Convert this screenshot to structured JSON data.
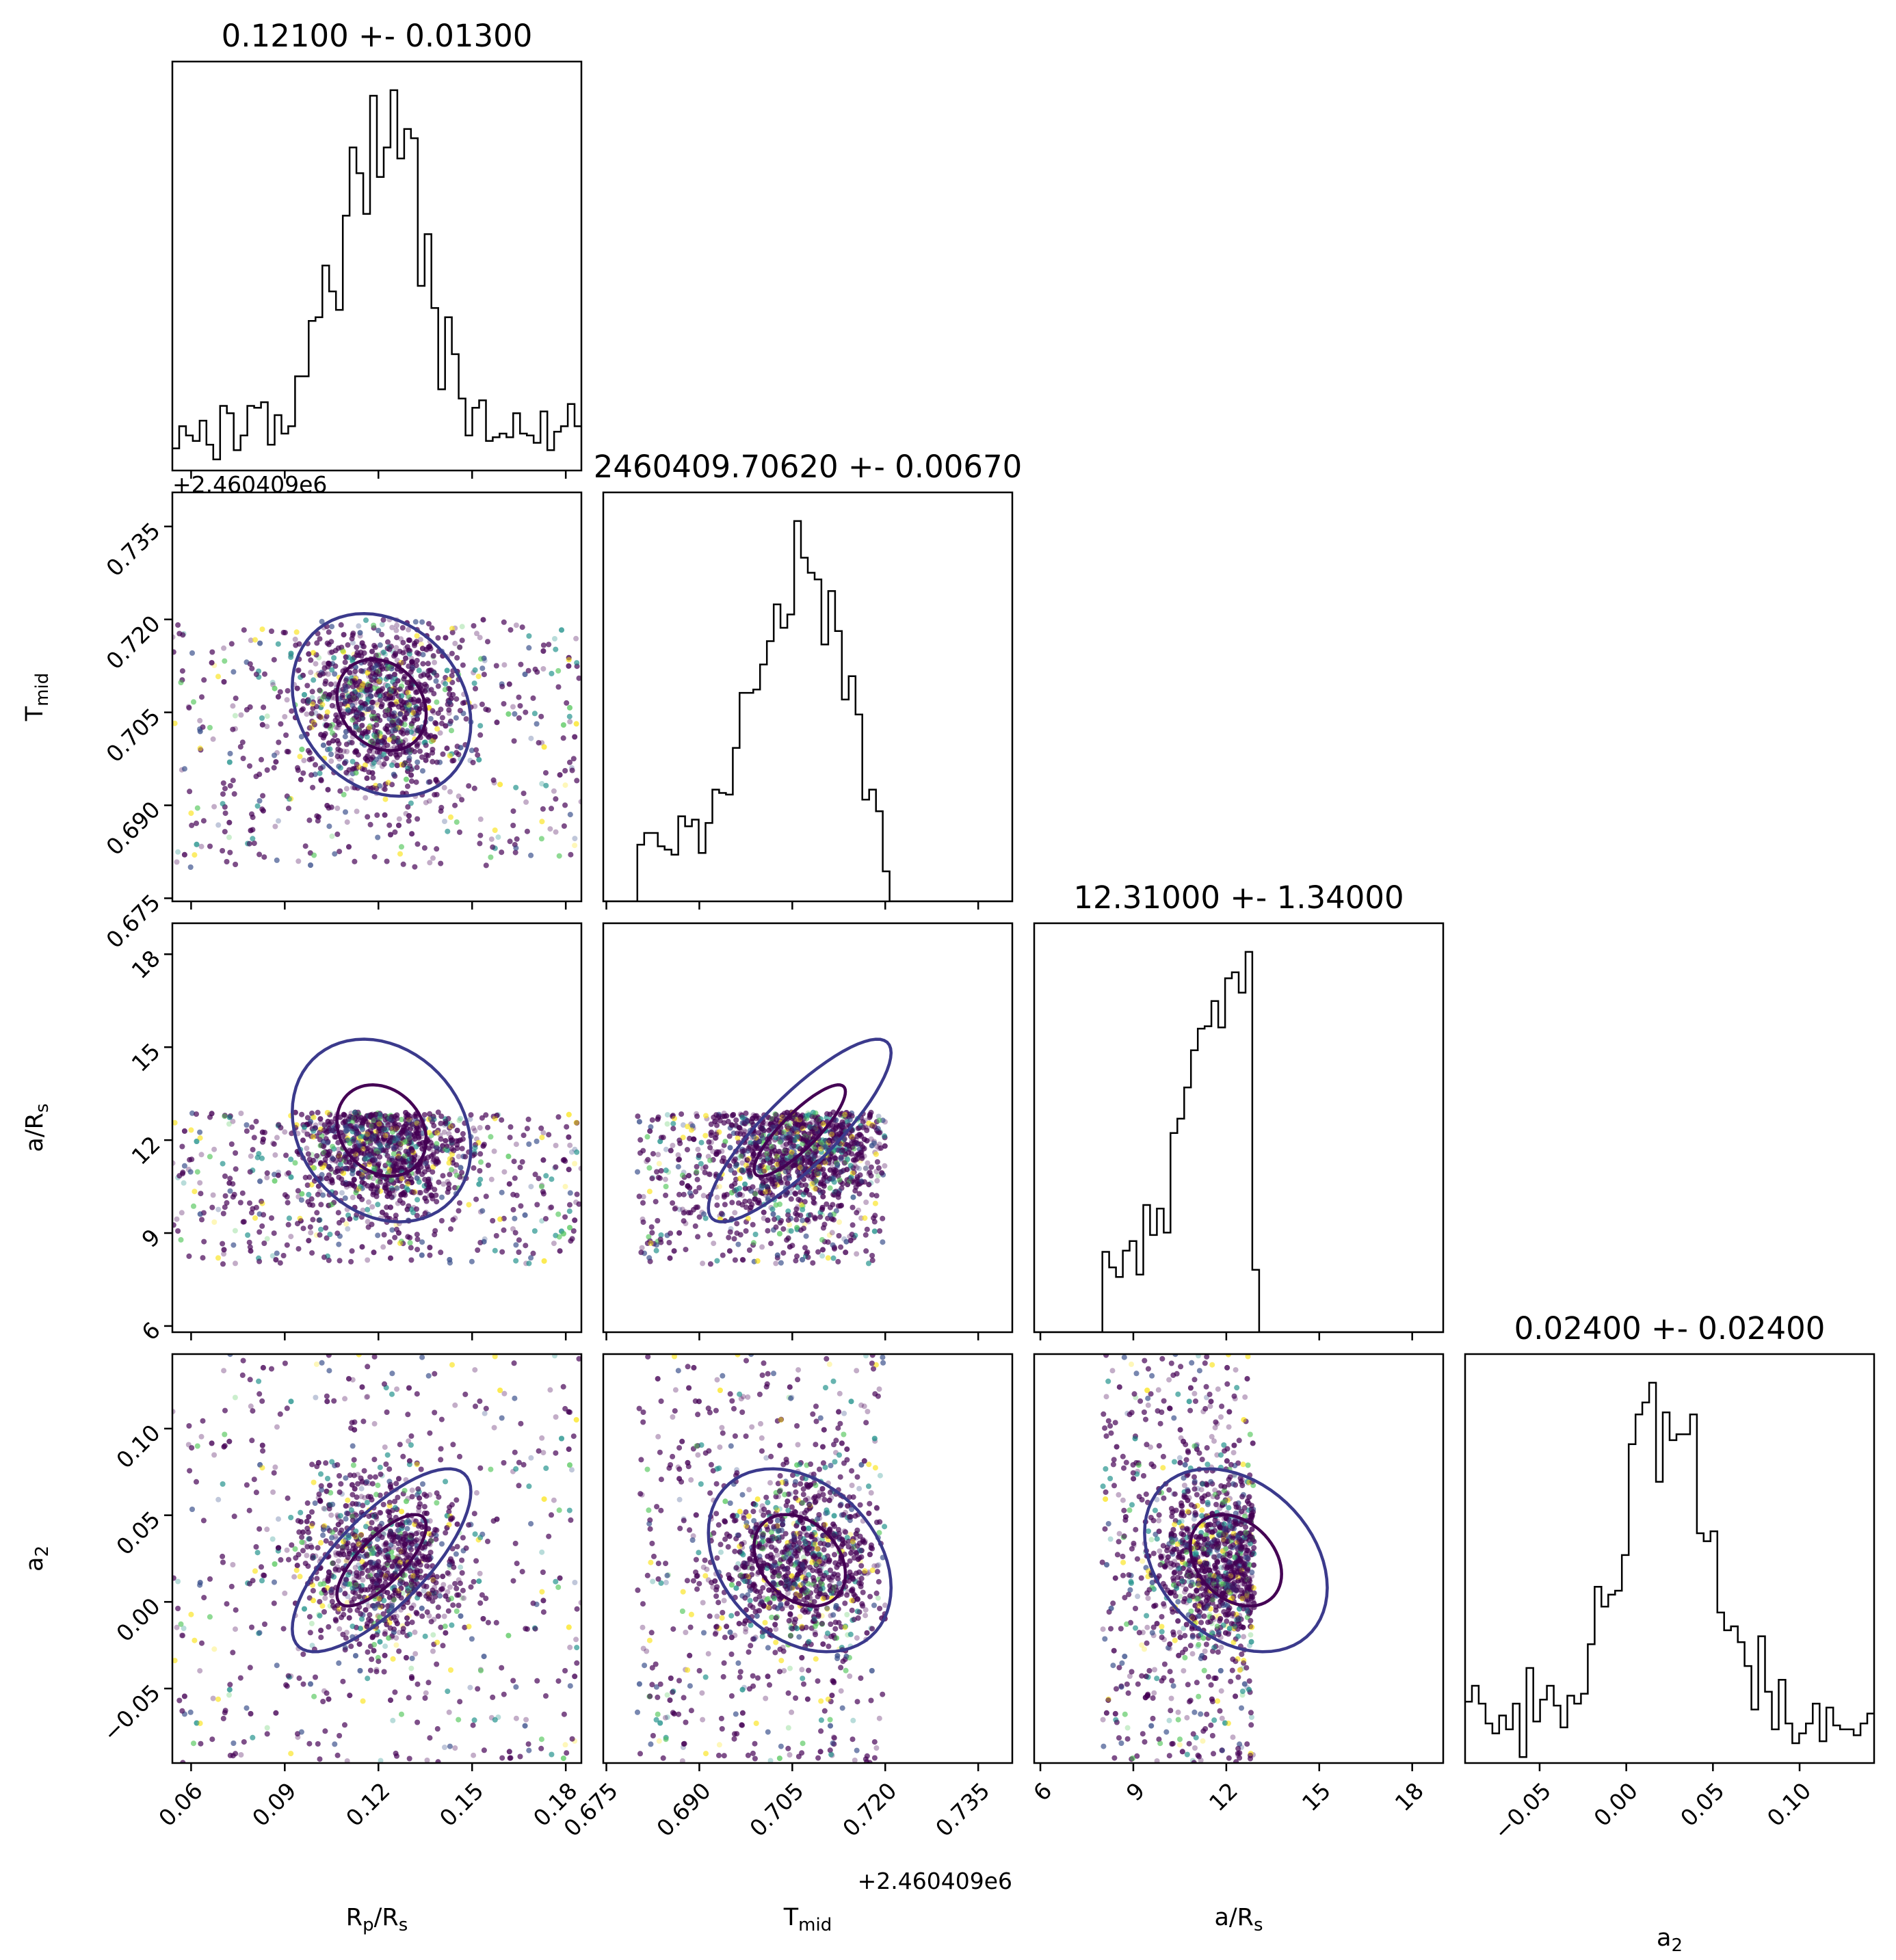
{
  "chart_data": {
    "type": "corner",
    "parameters": [
      {
        "key": "rp",
        "label": "R_p/R_s",
        "title": "0.12100 +- 0.01300",
        "range": [
          0.054,
          0.185
        ],
        "ticks": [
          "0.06",
          "0.09",
          "0.12",
          "0.15",
          "0.18"
        ],
        "tick_values": [
          0.06,
          0.09,
          0.12,
          0.15,
          0.18
        ]
      },
      {
        "key": "tmid",
        "label": "T_mid",
        "title": "2460409.70620 +- 0.00670",
        "offset_label": "+2.460409e6",
        "range": [
          0.6745,
          0.7405
        ],
        "ticks": [
          "0.675",
          "0.690",
          "0.705",
          "0.720",
          "0.735"
        ],
        "tick_values": [
          0.675,
          0.69,
          0.705,
          0.72,
          0.735
        ]
      },
      {
        "key": "ars",
        "label": "a/R_s",
        "title": "12.31000 +- 1.34000",
        "range": [
          5.8,
          19.0
        ],
        "ticks": [
          "6",
          "9",
          "12",
          "15",
          "18"
        ],
        "tick_values": [
          6,
          9,
          12,
          15,
          18
        ]
      },
      {
        "key": "a2",
        "label": "a_2",
        "title": "0.02400 +- 0.02400",
        "range": [
          -0.093,
          0.143
        ],
        "ticks": [
          "−0.05",
          "0.00",
          "0.05",
          "0.10"
        ],
        "tick_values": [
          -0.05,
          0.0,
          0.05,
          0.1
        ]
      }
    ],
    "axis_texts": {
      "rp": {
        "main": "R",
        "sub": "p",
        "tail": "/R",
        "sub2": "s"
      },
      "tmid": {
        "main": "T",
        "sub": "mid"
      },
      "ars": {
        "main": "a/R",
        "sub": "s"
      },
      "a2": {
        "main": "a",
        "sub": "2"
      }
    },
    "histograms": {
      "rp": {
        "mu": 0.121,
        "sigma": 0.013
      },
      "tmid": {
        "mu": 0.7062,
        "sigma": 0.0067
      },
      "ars": {
        "mu": 12.31,
        "sigma": 1.34
      },
      "a2": {
        "mu": 0.024,
        "sigma": 0.024
      }
    },
    "sample_bounds": {
      "rp": [
        0.054,
        0.185
      ],
      "tmid": [
        0.68,
        0.72
      ],
      "ars": [
        8.0,
        12.9
      ],
      "a2": [
        -0.093,
        0.143
      ]
    },
    "colors": {
      "hist": "#000000",
      "contour_inner": "#440154",
      "contour_outer": "#3b3a8c",
      "contour_extra": "#f9e721",
      "scatter_viridis": [
        "#440154",
        "#3b528b",
        "#21918c",
        "#5ec962",
        "#fde725"
      ]
    }
  }
}
